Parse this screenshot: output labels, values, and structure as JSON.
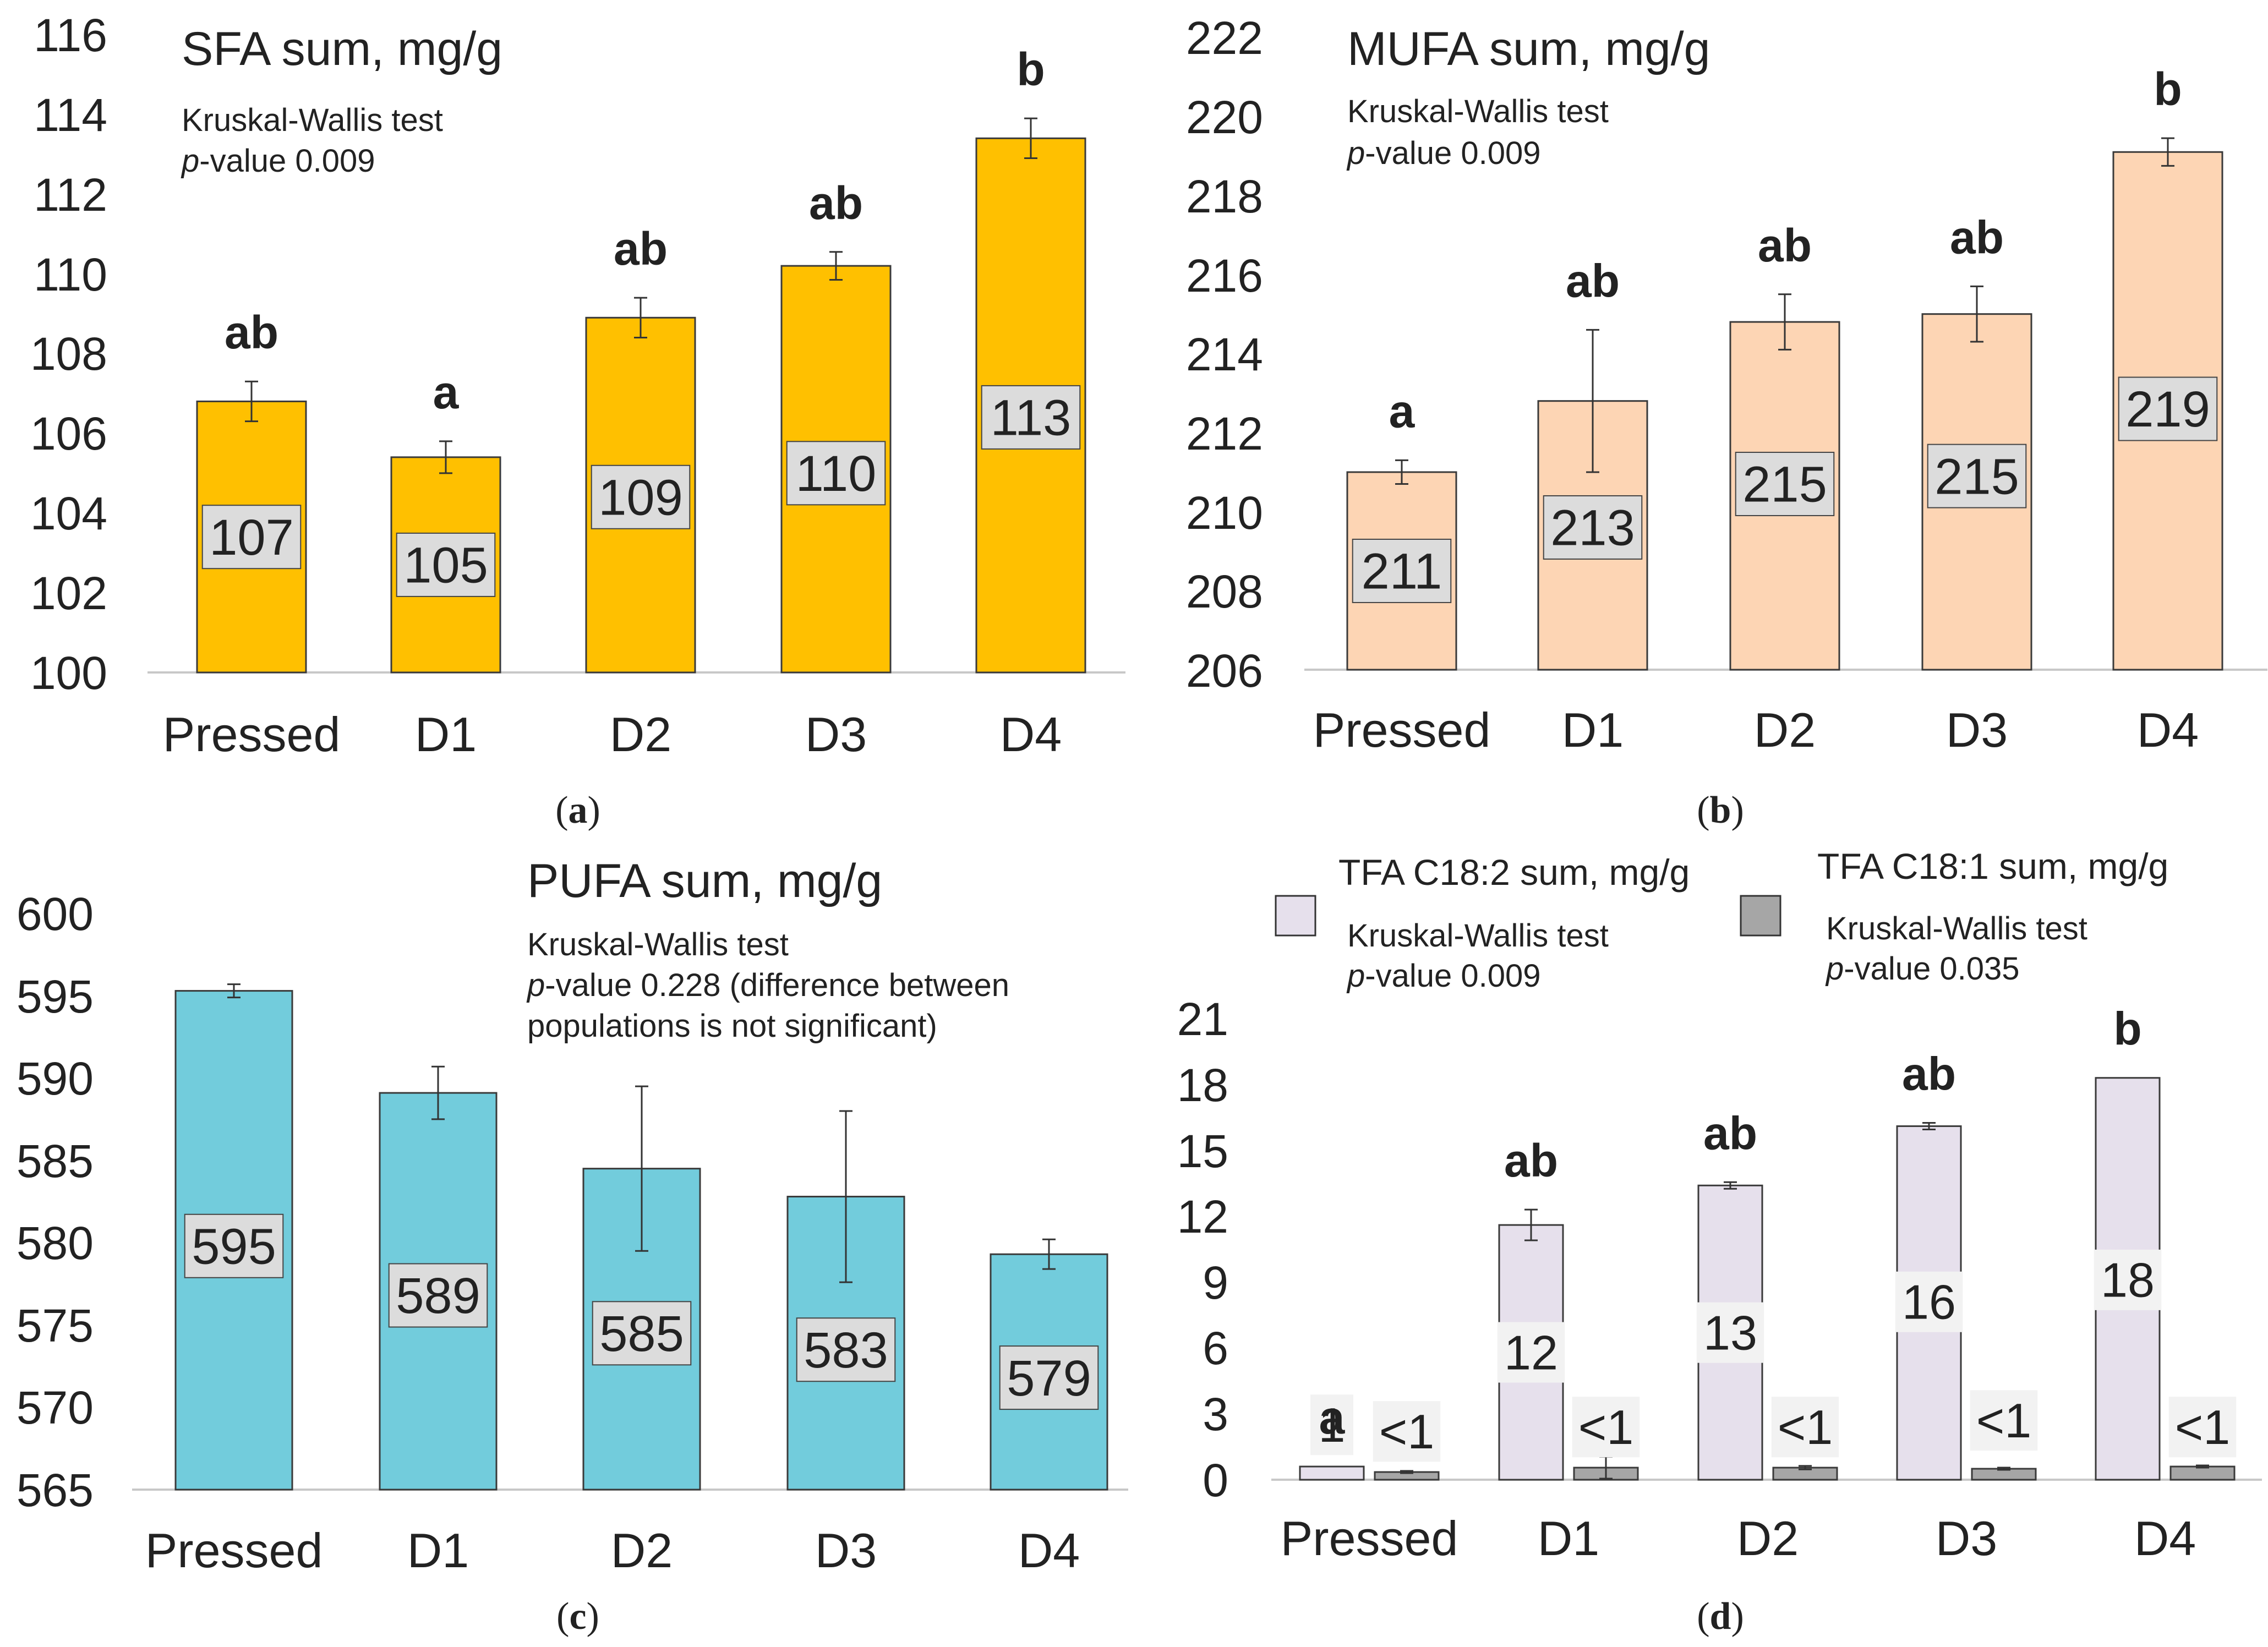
{
  "chart_data": [
    {
      "type": "bar",
      "panel": "(a)",
      "panel_letter": "a",
      "title": "SFA sum, mg/g",
      "test": "Kruskal-Wallis test",
      "p_value_text": "value 0.009",
      "ylim": [
        100,
        116
      ],
      "yticks": [
        100,
        102,
        104,
        106,
        108,
        110,
        112,
        114,
        116
      ],
      "categories": [
        "Pressed",
        "D1",
        "D2",
        "D3",
        "D4"
      ],
      "series": [
        {
          "name": "SFA sum",
          "color": "#FFC000",
          "values": [
            106.8,
            105.4,
            108.9,
            110.2,
            113.4
          ],
          "errors": [
            0.5,
            0.4,
            0.5,
            0.35,
            0.5
          ],
          "labels": [
            "107",
            "105",
            "109",
            "110",
            "113"
          ],
          "label_y": [
            103.4,
            102.7,
            104.4,
            105.0,
            106.4
          ]
        }
      ],
      "significance": [
        "ab",
        "a",
        "ab",
        "ab",
        "b"
      ]
    },
    {
      "type": "bar",
      "panel": "(b)",
      "panel_letter": "b",
      "title": "MUFA sum, mg/g",
      "test": "Kruskal-Wallis test",
      "p_value_text": "value 0.009",
      "ylim": [
        206,
        222
      ],
      "yticks": [
        206,
        208,
        210,
        212,
        214,
        216,
        218,
        220,
        222
      ],
      "categories": [
        "Pressed",
        "D1",
        "D2",
        "D3",
        "D4"
      ],
      "series": [
        {
          "name": "MUFA sum",
          "color": "#FDD5B4",
          "values": [
            211.0,
            212.8,
            214.8,
            215.0,
            219.1
          ],
          "errors": [
            0.3,
            1.8,
            0.7,
            0.7,
            0.35
          ],
          "labels": [
            "211",
            "213",
            "215",
            "215",
            "219"
          ],
          "label_y": [
            208.5,
            209.6,
            210.7,
            210.9,
            212.6
          ]
        }
      ],
      "significance": [
        "a",
        "ab",
        "ab",
        "ab",
        "b"
      ]
    },
    {
      "type": "bar",
      "panel": "(c)",
      "panel_letter": "c",
      "title": "PUFA sum, mg/g",
      "test": "Kruskal-Wallis test",
      "p_value_text": "value 0.228 (difference between",
      "note_line2": "populations is not significant)",
      "ylim": [
        565,
        600
      ],
      "yticks": [
        565,
        570,
        575,
        580,
        585,
        590,
        595,
        600
      ],
      "categories": [
        "Pressed",
        "D1",
        "D2",
        "D3",
        "D4"
      ],
      "series": [
        {
          "name": "PUFA sum",
          "color": "#72CCDC",
          "values": [
            595.3,
            589.1,
            584.5,
            582.8,
            579.3
          ],
          "errors": [
            0.4,
            1.6,
            5.0,
            5.2,
            0.9
          ],
          "labels": [
            "595",
            "589",
            "585",
            "583",
            "579"
          ],
          "label_y": [
            579.8,
            576.8,
            574.5,
            573.5,
            571.8
          ]
        }
      ],
      "significance": []
    },
    {
      "type": "bar",
      "panel": "(d)",
      "panel_letter": "d",
      "ylim": [
        0,
        21
      ],
      "yticks": [
        0,
        3,
        6,
        9,
        12,
        15,
        18,
        21
      ],
      "categories": [
        "Pressed",
        "D1",
        "D2",
        "D3",
        "D4"
      ],
      "series": [
        {
          "name": "TFA C18:2 sum, mg/g",
          "color": "#E6E0EC",
          "test": "Kruskal-Wallis test",
          "p_value_text": "value 0.009",
          "values": [
            0.6,
            11.6,
            13.4,
            16.1,
            18.3
          ],
          "errors": [
            0.0,
            0.7,
            0.15,
            0.15,
            0.0
          ],
          "labels": [
            "1",
            "12",
            "13",
            "16",
            "18"
          ],
          "label_y": [
            2.5,
            5.8,
            6.7,
            8.1,
            9.1
          ]
        },
        {
          "name": "TFA C18:1 sum, mg/g",
          "color": "#A6A6A6",
          "test": "Kruskal-Wallis test",
          "p_value_text": "value 0.035",
          "values": [
            0.35,
            0.55,
            0.55,
            0.5,
            0.6
          ],
          "errors": [
            0.05,
            0.5,
            0.08,
            0.05,
            0.05
          ],
          "labels": [
            "<1",
            "<1",
            "<1",
            "<1",
            "<1"
          ],
          "label_y": [
            2.2,
            2.4,
            2.4,
            2.7,
            2.4
          ]
        }
      ],
      "significance": [
        "a",
        "ab",
        "ab",
        "ab",
        "b"
      ]
    }
  ],
  "p_italic": "p"
}
